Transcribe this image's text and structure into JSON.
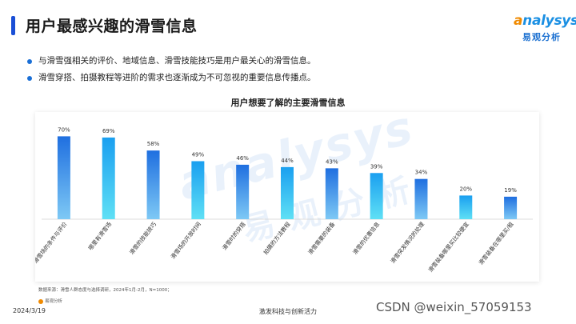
{
  "header": {
    "title": "用户最感兴趣的滑雪信息"
  },
  "logo": {
    "word_a": "a",
    "word_rest": "nalysys",
    "sub": "易观分析"
  },
  "bullets": [
    "与滑雪强相关的评价、地域信息、滑雪技能技巧是用户最关心的滑雪信息。",
    "滑雪穿搭、拍摄教程等进阶的需求也逐渐成为不可忽视的重要信息传播点。"
  ],
  "watermark": {
    "word": "analysys",
    "cn": "易观分析"
  },
  "chart_data": {
    "type": "bar",
    "title": "用户想要了解的主要滑雪信息",
    "categories": [
      "滑雪场的条件与评价",
      "哪里有滑雪场",
      "滑雪的技能技巧",
      "滑雪场的开放时间",
      "滑雪时的穿搭",
      "拍摄的方法教程",
      "滑雪需要的装备",
      "滑雪的优惠信息",
      "滑雪突发情况的处理",
      "滑雪装备哪里买比较便宜",
      "滑雪装备在哪里买/租"
    ],
    "values": [
      70,
      69,
      58,
      49,
      46,
      44,
      43,
      39,
      34,
      20,
      19
    ],
    "value_labels": [
      "70%",
      "69%",
      "58%",
      "49%",
      "46%",
      "44%",
      "43%",
      "39%",
      "34%",
      "20%",
      "19%"
    ],
    "ylim": [
      0,
      100
    ],
    "colors": {
      "bar_top": "#1f6fe0",
      "bar_bottom": "#7ec9f5",
      "bar_top_alt": "#1a9ff0",
      "bar_bottom_alt": "#5fe0f5"
    }
  },
  "footer": {
    "source": "数据来源：滑雪人群态度与选择调研，2024年1月-2月，N=1000；",
    "logo_text": "易观分析",
    "date": "2024/3/19",
    "center": "激发科技与创新活力",
    "csdn": "CSDN @weixin_57059153"
  }
}
